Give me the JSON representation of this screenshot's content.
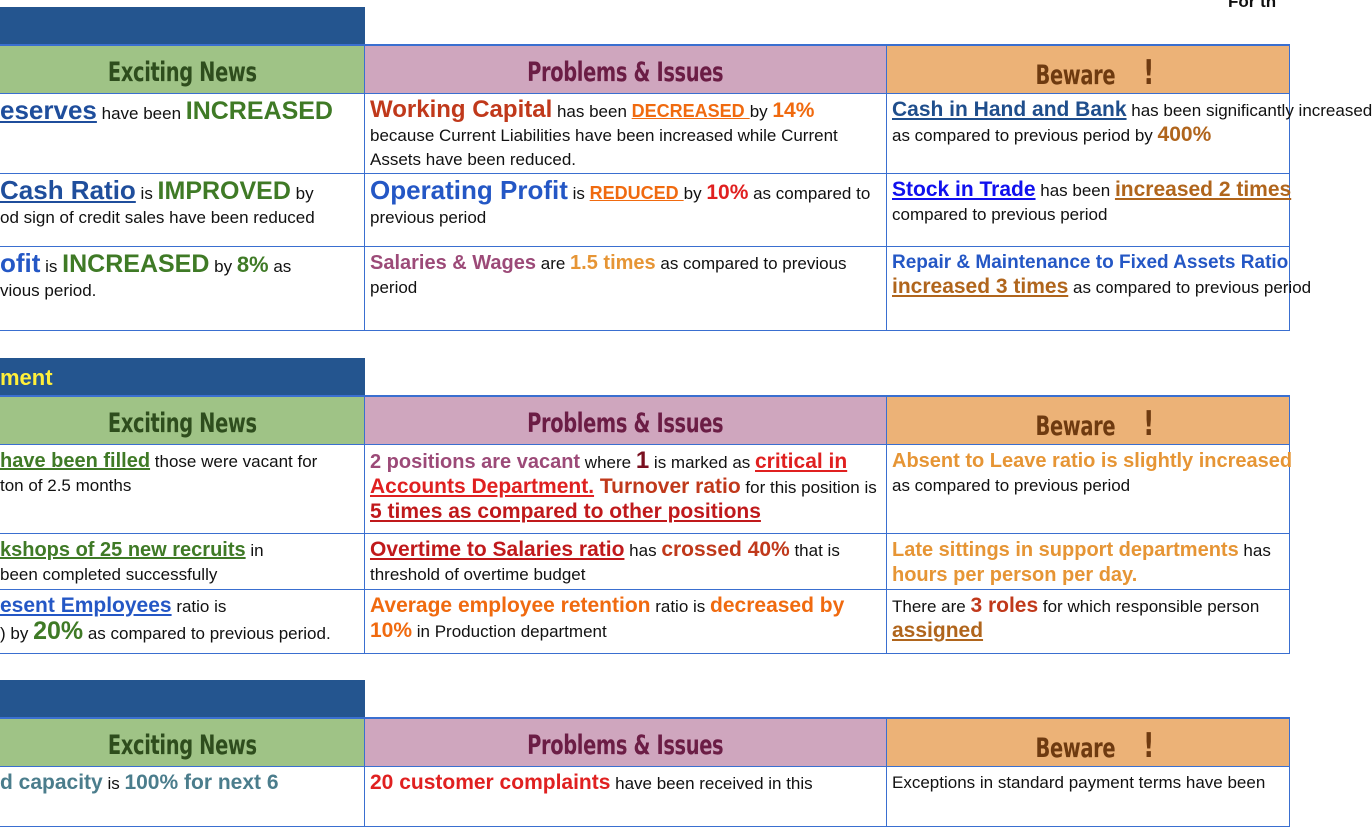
{
  "corner_text": "For th",
  "sections": [
    {
      "title": "",
      "headers": {
        "news": "Exciting News",
        "problems": "Problems & Issues",
        "beware": "Beware",
        "beware_mark": "!"
      },
      "rows": [
        [
          [
            {
              "t": "eserves",
              "s": "blink"
            },
            {
              "t": " have been ",
              "s": "n"
            },
            {
              "t": "INCREASED",
              "s": "bgreen"
            }
          ],
          [
            {
              "t": "Working Capital",
              "s": "bred"
            },
            {
              "t": " has been ",
              "s": "n"
            },
            {
              "t": "DECREASED ",
              "s": "oul"
            },
            {
              "t": "by ",
              "s": "n"
            },
            {
              "t": "14%",
              "s": "orange"
            },
            {
              "t": " because Current Liabilities have been increased while Current Assets have been reduced.",
              "s": "n"
            }
          ],
          [
            {
              "t": "Cash in Hand and Bank",
              "s": "navyul"
            },
            {
              "t": " has been significantly increased",
              "s": "n"
            },
            {
              "t": "\nas compared to previous period by ",
              "s": "n"
            },
            {
              "t": "400%",
              "s": "brown"
            }
          ]
        ],
        [
          [
            {
              "t": "Cash Ratio",
              "s": "blink"
            },
            {
              "t": " is ",
              "s": "n"
            },
            {
              "t": "IMPROVED",
              "s": "bgreen"
            },
            {
              "t": " by",
              "s": "n"
            },
            {
              "t": "\nod sign of credit sales have been reduced",
              "s": "n"
            }
          ],
          [
            {
              "t": "Operating Profit",
              "s": "bblue"
            },
            {
              "t": " is ",
              "s": "n"
            },
            {
              "t": "REDUCED ",
              "s": "oul"
            },
            {
              "t": "by ",
              "s": "n"
            },
            {
              "t": "10%",
              "s": "red"
            },
            {
              "t": " as compared to previous period",
              "s": "n"
            }
          ],
          [
            {
              "t": "Stock in Trade",
              "s": "blueul"
            },
            {
              "t": " has been ",
              "s": "n"
            },
            {
              "t": "increased 2 times",
              "s": "brownul"
            },
            {
              "t": "\ncompared to previous period",
              "s": "n"
            }
          ]
        ],
        [
          [
            {
              "t": "ofit",
              "s": "bblue"
            },
            {
              "t": " is ",
              "s": "n"
            },
            {
              "t": "INCREASED",
              "s": "bgreen"
            },
            {
              "t": " by ",
              "s": "n"
            },
            {
              "t": "8%",
              "s": "green"
            },
            {
              "t": " as",
              "s": "n"
            },
            {
              "t": "\nvious period.",
              "s": "n"
            }
          ],
          [
            {
              "t": "Salaries & Wages",
              "s": "mauve"
            },
            {
              "t": " are ",
              "s": "n"
            },
            {
              "t": "1.5 times",
              "s": "gold"
            },
            {
              "t": " as compared to previous period",
              "s": "n"
            }
          ],
          [
            {
              "t": "Repair & Maintenance to Fixed Assets Ratio",
              "s": "blue"
            },
            {
              "t": "\n",
              "s": "n"
            },
            {
              "t": "increased 3 times",
              "s": "brownul"
            },
            {
              "t": " as compared to previous period",
              "s": "n"
            }
          ]
        ]
      ]
    },
    {
      "title": "ment",
      "headers": {
        "news": "Exciting News",
        "problems": "Problems & Issues",
        "beware": "Beware",
        "beware_mark": "!"
      },
      "rows": [
        [
          [
            {
              "t": "have been filled",
              "s": "gul"
            },
            {
              "t": " those were vacant for",
              "s": "n"
            },
            {
              "t": "\nton of 2.5 months",
              "s": "n"
            }
          ],
          [
            {
              "t": "2 positions are vacant",
              "s": "mauve"
            },
            {
              "t": " where ",
              "s": "n"
            },
            {
              "t": "1",
              "s": "maroon"
            },
            {
              "t": " is marked as ",
              "s": "n"
            },
            {
              "t": "critical in Accounts Department.",
              "s": "redul"
            },
            {
              "t": " Turnover ratio",
              "s": "dred"
            },
            {
              "t": " for this position is ",
              "s": "n"
            },
            {
              "t": "5 times as compared to other positions",
              "s": "dredul"
            }
          ],
          [
            {
              "t": "Absent to Leave ratio is slightly increased",
              "s": "gold"
            },
            {
              "t": "\nas compared to previous period",
              "s": "n"
            }
          ]
        ],
        [
          [
            {
              "t": "kshops of 25 new recruits",
              "s": "gul"
            },
            {
              "t": " in",
              "s": "n"
            },
            {
              "t": "\nbeen completed successfully",
              "s": "n"
            }
          ],
          [
            {
              "t": "Overtime to Salaries ratio",
              "s": "dredul"
            },
            {
              "t": " has ",
              "s": "n"
            },
            {
              "t": "crossed 40%",
              "s": "dred"
            },
            {
              "t": " that is threshold of overtime budget",
              "s": "n"
            }
          ],
          [
            {
              "t": "Late sittings in support departments",
              "s": "gold"
            },
            {
              "t": " has",
              "s": "n"
            },
            {
              "t": "\n",
              "s": "n"
            },
            {
              "t": "hours per person per day.",
              "s": "gold"
            }
          ]
        ],
        [
          [
            {
              "t": "esent Employees",
              "s": "blueul2"
            },
            {
              "t": " ratio is",
              "s": "n"
            },
            {
              "t": "\n) by ",
              "s": "n"
            },
            {
              "t": "20%",
              "s": "bgreen"
            },
            {
              "t": " as compared to previous period.",
              "s": "n"
            }
          ],
          [
            {
              "t": "Average employee retention",
              "s": "orange"
            },
            {
              "t": " ratio is ",
              "s": "n"
            },
            {
              "t": "decreased by 10%",
              "s": "orange"
            },
            {
              "t": " in Production department",
              "s": "n"
            }
          ],
          [
            {
              "t": "There are ",
              "s": "n"
            },
            {
              "t": "3 roles",
              "s": "dred"
            },
            {
              "t": " for which responsible person",
              "s": "n"
            },
            {
              "t": "\n",
              "s": "n"
            },
            {
              "t": "assigned",
              "s": "brownul"
            }
          ]
        ]
      ]
    },
    {
      "title": "",
      "headers": {
        "news": "Exciting News",
        "problems": "Problems & Issues",
        "beware": "Beware",
        "beware_mark": "!"
      },
      "rows": [
        [
          [
            {
              "t": "d capacity",
              "s": "teal"
            },
            {
              "t": " is ",
              "s": "n"
            },
            {
              "t": "100% for next 6",
              "s": "teal"
            }
          ],
          [
            {
              "t": "20 customer complaints",
              "s": "red"
            },
            {
              "t": " have been received in this",
              "s": "n"
            }
          ],
          [
            {
              "t": "Exceptions in standard payment terms have been",
              "s": "n"
            }
          ]
        ]
      ]
    }
  ]
}
